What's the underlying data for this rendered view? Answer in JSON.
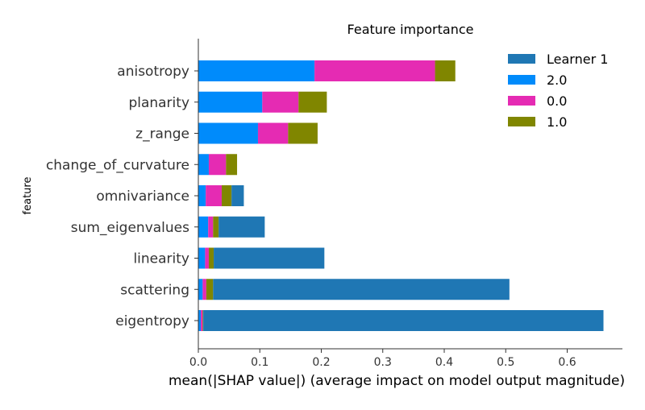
{
  "chart_data": {
    "type": "bar",
    "orientation": "horizontal",
    "stacked": true,
    "title": "Feature importance",
    "xlabel": "mean(|SHAP value|) (average impact on model output magnitude)",
    "ylabel": "feature",
    "xlim": [
      0,
      0.69
    ],
    "xticks": [
      "0.0",
      "0.1",
      "0.2",
      "0.3",
      "0.4",
      "0.5",
      "0.6"
    ],
    "grid": false,
    "legend_position": "top-right",
    "categories": [
      "anisotropy",
      "planarity",
      "z_range",
      "change_of_curvature",
      "omnivariance",
      "sum_eigenvalues",
      "linearity",
      "scattering",
      "eigentropy"
    ],
    "series": [
      {
        "name": "2.0",
        "color": "#008bfb",
        "values": [
          0.189,
          0.104,
          0.097,
          0.017,
          0.012,
          0.016,
          0.011,
          0.007,
          0.004
        ]
      },
      {
        "name": "0.0",
        "color": "#e52bb3",
        "values": [
          0.196,
          0.059,
          0.049,
          0.028,
          0.026,
          0.008,
          0.006,
          0.006,
          0.003
        ]
      },
      {
        "name": "1.0",
        "color": "#808600",
        "values": [
          0.033,
          0.046,
          0.048,
          0.018,
          0.016,
          0.009,
          0.008,
          0.011,
          0.001
        ]
      },
      {
        "name": "Learner 1",
        "color": "#1f77b4",
        "values": [
          0.0,
          0.0,
          0.0,
          0.0,
          0.02,
          0.075,
          0.18,
          0.482,
          0.651
        ]
      }
    ],
    "legend_order": [
      "Learner 1",
      "2.0",
      "0.0",
      "1.0"
    ]
  }
}
